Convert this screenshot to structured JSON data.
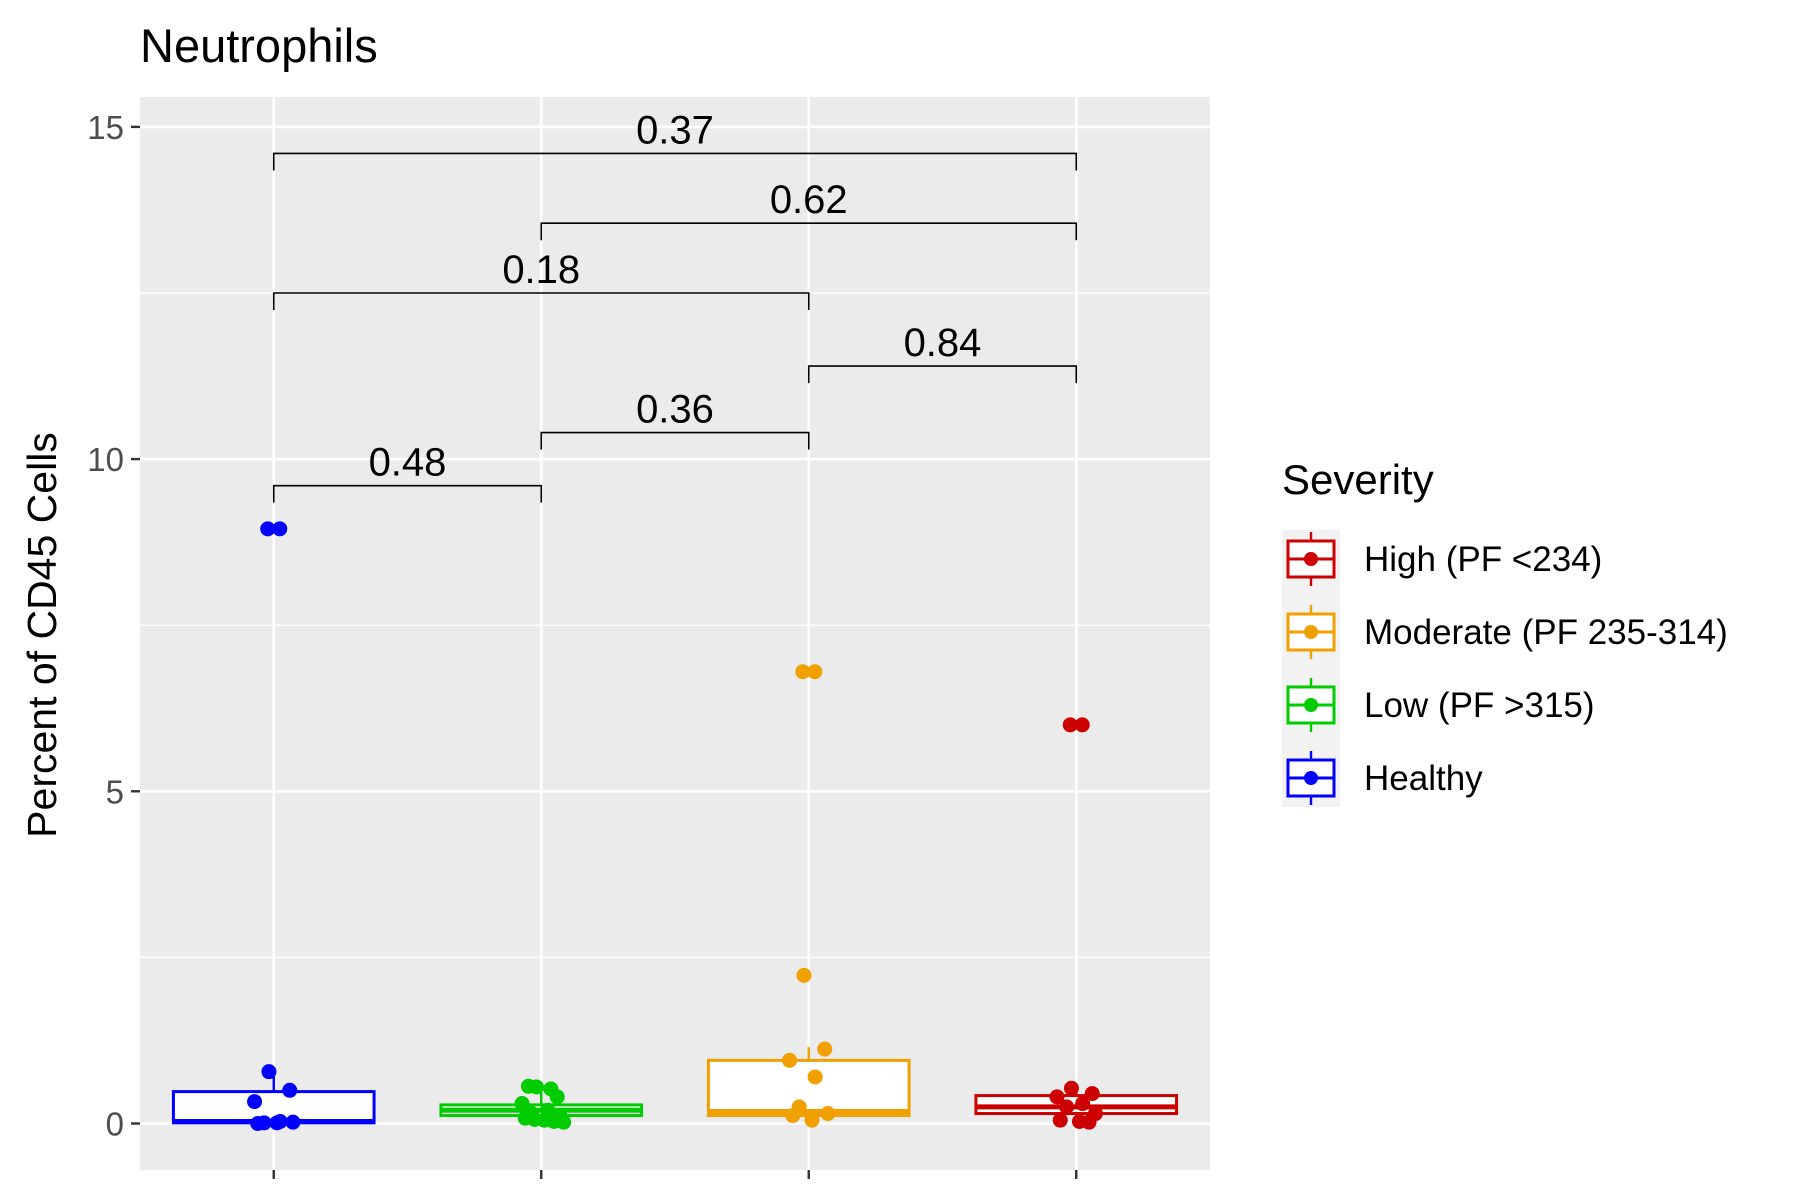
{
  "chart_data": {
    "type": "boxplot",
    "title": "Neutrophils",
    "xlabel": "",
    "ylabel": "Percent of CD45 Cells",
    "ylim": [
      -0.7,
      15.45
    ],
    "y_ticks": [
      0,
      5,
      10,
      15
    ],
    "grid": true,
    "groups": [
      {
        "key": "healthy",
        "color": "#0000ff",
        "box": {
          "q1": 0.01,
          "median": 0.03,
          "q3": 0.48,
          "whisker_low": 0.0,
          "whisker_high": 0.75
        },
        "points": [
          8.95,
          8.95,
          0.78,
          0.5,
          0.33,
          0.03,
          0.01,
          0.02,
          0.0,
          0.01
        ]
      },
      {
        "key": "low",
        "color": "#00cc00",
        "box": {
          "q1": 0.12,
          "median": 0.2,
          "q3": 0.28,
          "whisker_low": 0.02,
          "whisker_high": 0.56
        },
        "points": [
          0.56,
          0.52,
          0.55,
          0.4,
          0.3,
          0.2,
          0.15,
          0.1,
          0.08,
          0.05,
          0.03,
          0.06,
          0.02
        ]
      },
      {
        "key": "moderate",
        "color": "#f0a000",
        "box": {
          "q1": 0.12,
          "median": 0.18,
          "q3": 0.95,
          "whisker_low": 0.05,
          "whisker_high": 1.15
        },
        "points": [
          6.8,
          6.8,
          2.23,
          1.12,
          0.95,
          0.7,
          0.25,
          0.15,
          0.12,
          0.05
        ]
      },
      {
        "key": "high",
        "color": "#cc0000",
        "box": {
          "q1": 0.15,
          "median": 0.25,
          "q3": 0.42,
          "whisker_low": 0.0,
          "whisker_high": 0.55
        },
        "points": [
          6.0,
          6.0,
          0.53,
          0.45,
          0.4,
          0.3,
          0.25,
          0.15,
          0.05,
          0.03,
          0.02
        ]
      }
    ],
    "comparisons": [
      {
        "from": 0,
        "to": 1,
        "y": 9.6,
        "label": "0.48"
      },
      {
        "from": 1,
        "to": 2,
        "y": 10.4,
        "label": "0.36"
      },
      {
        "from": 2,
        "to": 3,
        "y": 11.4,
        "label": "0.84"
      },
      {
        "from": 0,
        "to": 2,
        "y": 12.5,
        "label": "0.18"
      },
      {
        "from": 1,
        "to": 3,
        "y": 13.55,
        "label": "0.62"
      },
      {
        "from": 0,
        "to": 3,
        "y": 14.6,
        "label": "0.37"
      }
    ],
    "legend": {
      "title": "Severity",
      "position": "right",
      "items": [
        {
          "label": "High (PF <234)",
          "color": "#cc0000"
        },
        {
          "label": "Moderate (PF 235-314)",
          "color": "#f0a000"
        },
        {
          "label": "Low (PF >315)",
          "color": "#00cc00"
        },
        {
          "label": "Healthy",
          "color": "#0000ff"
        }
      ]
    }
  }
}
